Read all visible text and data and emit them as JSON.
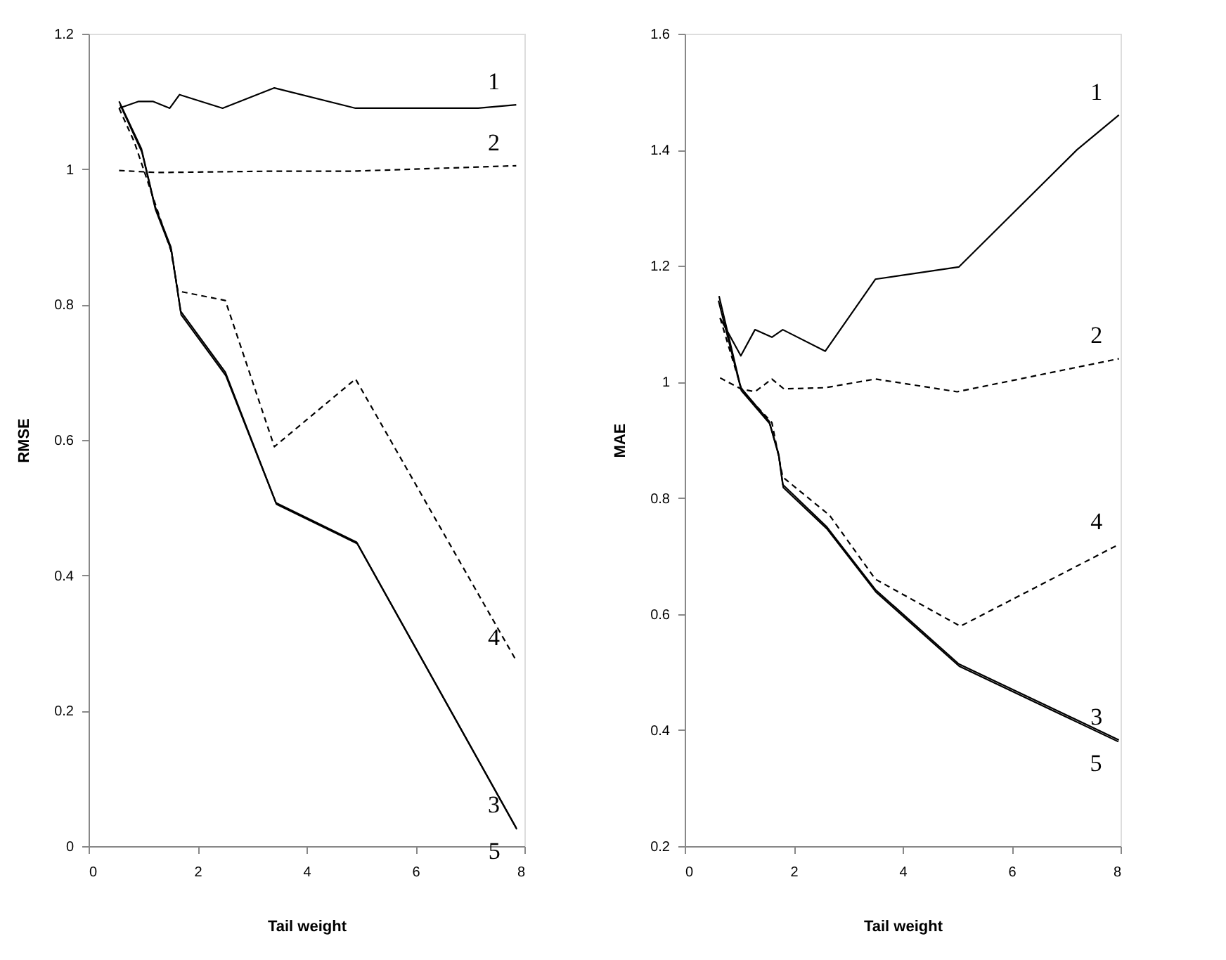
{
  "chart_data": [
    {
      "type": "line",
      "xlabel": "Tail weight",
      "ylabel": "RMSE",
      "xlim": [
        0,
        8
      ],
      "xticks": [
        0,
        2,
        4,
        6,
        8
      ],
      "ylim": [
        0,
        1.2
      ],
      "yticks": [
        0,
        0.2,
        0.4,
        0.6,
        0.8,
        1,
        1.2
      ],
      "grid": false,
      "series": [
        {
          "name": "1",
          "color": "#000000",
          "line_style": "solid",
          "x": [
            0.56,
            0.92,
            1.18,
            1.49,
            1.67,
            2.46,
            3.41,
            4.9,
            5.5,
            7.15,
            7.85
          ],
          "values": [
            1.09,
            1.1,
            1.1,
            1.09,
            1.11,
            1.09,
            1.12,
            1.09,
            1.09,
            1.09,
            1.095
          ]
        },
        {
          "name": "2",
          "color": "#000000",
          "line_style": "dashed",
          "x": [
            0.56,
            1.26,
            3.4,
            4.85,
            7.85
          ],
          "values": [
            0.998,
            0.995,
            0.997,
            0.997,
            1.005
          ]
        },
        {
          "name": "3",
          "color": "#000000",
          "line_style": "solid",
          "x": [
            0.56,
            0.97,
            1.22,
            1.51,
            1.69,
            2.51,
            3.44,
            4.92,
            7.85
          ],
          "values": [
            1.1,
            1.03,
            0.945,
            0.885,
            0.79,
            0.7,
            0.507,
            0.449,
            0.027
          ]
        },
        {
          "name": "4",
          "color": "#000000",
          "line_style": "dashed",
          "x": [
            0.56,
            0.84,
            1.26,
            1.51,
            1.64,
            2.51,
            3.41,
            4.9,
            7.85
          ],
          "values": [
            1.09,
            1.04,
            0.94,
            0.88,
            0.82,
            0.806,
            0.59,
            0.69,
            0.274
          ]
        },
        {
          "name": "5",
          "color": "#000000",
          "line_style": "solid",
          "x": [
            0.58,
            0.98,
            1.23,
            1.52,
            1.7,
            2.52,
            3.45,
            4.93,
            7.86
          ],
          "values": [
            1.095,
            1.025,
            0.94,
            0.88,
            0.785,
            0.695,
            0.505,
            0.447,
            0.025
          ]
        }
      ]
    },
    {
      "type": "line",
      "xlabel": "Tail weight",
      "ylabel": "MAE",
      "xlim": [
        0,
        8
      ],
      "xticks": [
        0,
        2,
        4,
        6,
        8
      ],
      "ylim": [
        0.2,
        1.6
      ],
      "yticks": [
        0.2,
        0.4,
        0.6,
        0.8,
        1,
        1.2,
        1.4,
        1.6
      ],
      "grid": false,
      "series": [
        {
          "name": "1",
          "color": "#000000",
          "line_style": "solid",
          "x": [
            0.65,
            1.03,
            1.29,
            1.6,
            1.8,
            2.58,
            3.5,
            5.03,
            7.2,
            7.97
          ],
          "values": [
            1.11,
            1.045,
            1.09,
            1.077,
            1.09,
            1.053,
            1.177,
            1.198,
            1.4,
            1.46
          ]
        },
        {
          "name": "2",
          "color": "#000000",
          "line_style": "dashed",
          "x": [
            0.65,
            1.03,
            1.29,
            1.6,
            1.82,
            2.58,
            3.5,
            5.0,
            7.97
          ],
          "values": [
            1.007,
            0.988,
            0.983,
            1.005,
            0.988,
            0.99,
            1.005,
            0.983,
            1.04
          ]
        },
        {
          "name": "3",
          "color": "#000000",
          "line_style": "solid",
          "x": [
            0.63,
            1.03,
            1.55,
            1.72,
            1.8,
            2.6,
            3.5,
            5.03,
            7.97
          ],
          "values": [
            1.148,
            0.99,
            0.932,
            0.877,
            0.823,
            0.751,
            0.642,
            0.514,
            0.383
          ]
        },
        {
          "name": "4",
          "color": "#000000",
          "line_style": "dashed",
          "x": [
            0.65,
            1.05,
            1.6,
            1.8,
            2.66,
            3.5,
            5.06,
            7.97
          ],
          "values": [
            1.11,
            0.985,
            0.93,
            0.836,
            0.77,
            0.66,
            0.579,
            0.72
          ]
        },
        {
          "name": "5",
          "color": "#000000",
          "line_style": "solid",
          "x": [
            0.62,
            1.04,
            1.56,
            1.73,
            1.81,
            2.61,
            3.51,
            5.04,
            7.96
          ],
          "values": [
            1.14,
            0.985,
            0.928,
            0.872,
            0.818,
            0.747,
            0.638,
            0.51,
            0.38
          ]
        }
      ]
    }
  ]
}
